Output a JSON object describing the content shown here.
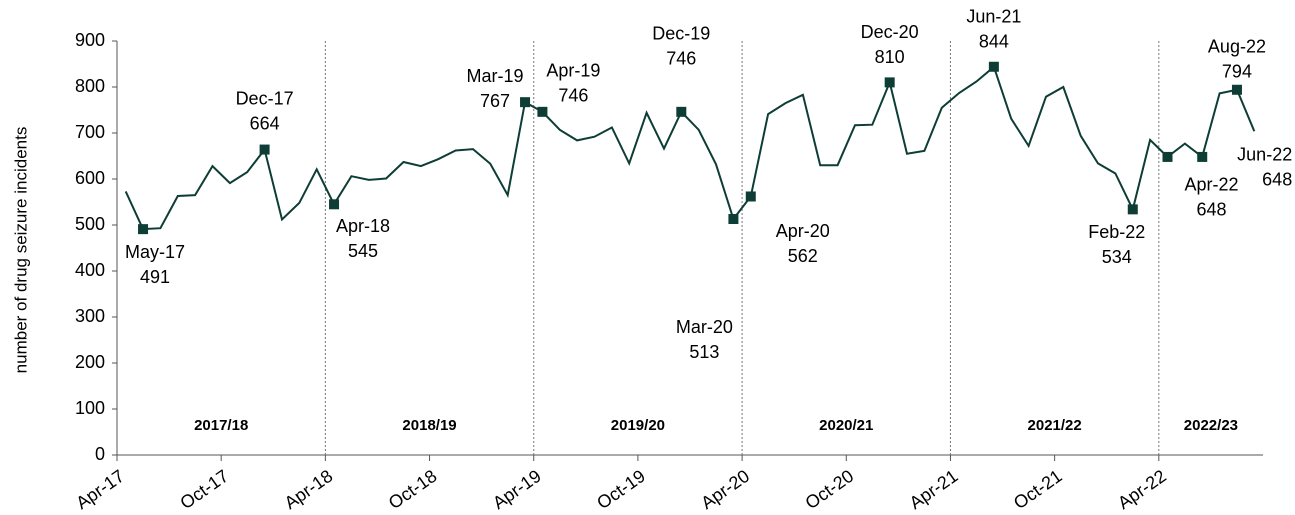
{
  "chart_data": {
    "type": "line",
    "y_label": "number of drug seizure incidents",
    "categories": [
      "Apr-17",
      "May-17",
      "Jun-17",
      "Jul-17",
      "Aug-17",
      "Sep-17",
      "Oct-17",
      "Nov-17",
      "Dec-17",
      "Jan-18",
      "Feb-18",
      "Mar-18",
      "Apr-18",
      "May-18",
      "Jun-18",
      "Jul-18",
      "Aug-18",
      "Sep-18",
      "Oct-18",
      "Nov-18",
      "Dec-18",
      "Jan-19",
      "Feb-19",
      "Mar-19",
      "Apr-19",
      "May-19",
      "Jun-19",
      "Jul-19",
      "Aug-19",
      "Sep-19",
      "Oct-19",
      "Nov-19",
      "Dec-19",
      "Jan-20",
      "Feb-20",
      "Mar-20",
      "Apr-20",
      "May-20",
      "Jun-20",
      "Jul-20",
      "Aug-20",
      "Sep-20",
      "Oct-20",
      "Nov-20",
      "Dec-20",
      "Jan-21",
      "Feb-21",
      "Mar-21",
      "Apr-21",
      "May-21",
      "Jun-21",
      "Jul-21",
      "Aug-21",
      "Sep-21",
      "Oct-21",
      "Nov-21",
      "Dec-21",
      "Jan-22",
      "Feb-22",
      "Mar-22",
      "Apr-22",
      "May-22",
      "Jun-22",
      "Jul-22",
      "Aug-22",
      "Sep-22"
    ],
    "series": [
      {
        "name": "drug seizure incidents",
        "color": "#0d3d35",
        "values": [
          573,
          491,
          493,
          563,
          565,
          628,
          591,
          615,
          664,
          512,
          548,
          621,
          545,
          606,
          598,
          601,
          637,
          628,
          643,
          662,
          665,
          633,
          565,
          767,
          746,
          707,
          684,
          692,
          712,
          634,
          744,
          666,
          746,
          707,
          632,
          513,
          562,
          741,
          765,
          783,
          630,
          630,
          717,
          718,
          810,
          655,
          661,
          755,
          787,
          812,
          844,
          731,
          672,
          779,
          800,
          694,
          634,
          612,
          534,
          685,
          648,
          677,
          648,
          786,
          794,
          704
        ]
      }
    ],
    "xticks": [
      "Apr-17",
      "Oct-17",
      "Apr-18",
      "Oct-18",
      "Apr-19",
      "Oct-19",
      "Apr-20",
      "Oct-20",
      "Apr-21",
      "Oct-21",
      "Apr-22"
    ],
    "ylim": [
      0,
      900
    ],
    "yticks": [
      0,
      100,
      200,
      300,
      400,
      500,
      600,
      700,
      800,
      900
    ],
    "highlights": [
      "May-17",
      "Dec-17",
      "Apr-18",
      "Mar-19",
      "Apr-19",
      "Dec-19",
      "Mar-20",
      "Apr-20",
      "Dec-20",
      "Jun-21",
      "Feb-22",
      "Apr-22",
      "Jun-22",
      "Aug-22"
    ],
    "periods": [
      "2017/18",
      "2018/19",
      "2019/20",
      "2020/21",
      "2021/22",
      "2022/23"
    ],
    "marker_color": "#0d3d35"
  }
}
